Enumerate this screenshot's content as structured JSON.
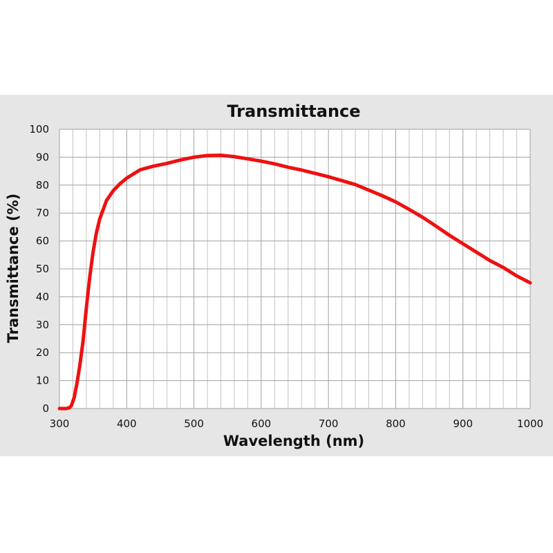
{
  "colors": {
    "panel_background": "#e6e6e6",
    "plot_background": "#ffffff",
    "grid_major": "#a0a0a0",
    "grid_minor": "#c4c4c4",
    "series": "#ee1111",
    "text": "#111111"
  },
  "chart_data": {
    "type": "line",
    "title": "Transmittance",
    "xlabel": "Wavelength (nm)",
    "ylabel": "Transmittance (%)",
    "xlim": [
      300,
      1000
    ],
    "ylim": [
      0,
      100
    ],
    "x_ticks": [
      300,
      400,
      500,
      600,
      700,
      800,
      900,
      1000
    ],
    "y_ticks": [
      0,
      10,
      20,
      30,
      40,
      50,
      60,
      70,
      80,
      90,
      100
    ],
    "x_minor_step": 20,
    "grid": true,
    "legend": "none",
    "series": [
      {
        "color": "#ee1111",
        "x": [
          300,
          310,
          315,
          318,
          322,
          326,
          330,
          335,
          340,
          345,
          350,
          355,
          360,
          370,
          380,
          390,
          400,
          420,
          440,
          460,
          480,
          500,
          520,
          540,
          560,
          580,
          600,
          620,
          640,
          660,
          680,
          700,
          720,
          740,
          760,
          780,
          800,
          820,
          840,
          860,
          880,
          900,
          920,
          940,
          960,
          980,
          1000
        ],
        "y": [
          0,
          0,
          0.3,
          1.2,
          4,
          9,
          15,
          24,
          36,
          47,
          56,
          63,
          68,
          74.5,
          78,
          80.5,
          82.5,
          85.5,
          86.8,
          87.8,
          89,
          90,
          90.6,
          90.7,
          90.2,
          89.4,
          88.6,
          87.6,
          86.4,
          85.4,
          84.2,
          83,
          81.6,
          80.2,
          78.2,
          76.2,
          74,
          71.3,
          68.5,
          65.3,
          62,
          59,
          56,
          53,
          50.5,
          47.5,
          45
        ]
      }
    ]
  }
}
